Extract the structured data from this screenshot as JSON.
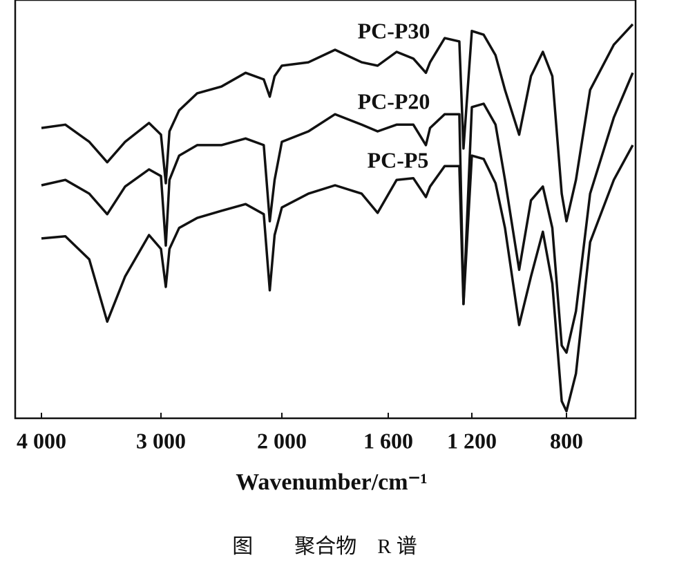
{
  "chart_data": {
    "type": "line",
    "xlabel": "Wavenumber/cm⁻¹",
    "caption": "图　　聚合物　R 谱",
    "x": [
      4000,
      3800,
      3600,
      3450,
      3300,
      3100,
      3000,
      2960,
      2930,
      2850,
      2700,
      2500,
      2300,
      2150,
      2100,
      2060,
      2000,
      1900,
      1800,
      1700,
      1640,
      1560,
      1480,
      1420,
      1400,
      1330,
      1260,
      1240,
      1200,
      1150,
      1100,
      1060,
      1000,
      950,
      900,
      860,
      820,
      800,
      760,
      700,
      600,
      520
    ],
    "series": [
      {
        "name": "PC-P30",
        "color": "#111111",
        "values": [
          69.4,
          70.2,
          66.1,
          61.2,
          66.1,
          70.6,
          67.8,
          56.2,
          68.6,
          73.6,
          77.7,
          79.3,
          82.6,
          81.0,
          76.9,
          81.8,
          84.3,
          85.1,
          88.1,
          85.1,
          84.3,
          87.6,
          86.0,
          82.6,
          85.1,
          90.9,
          90.1,
          64.5,
          92.6,
          91.7,
          86.8,
          78.5,
          67.8,
          81.8,
          87.6,
          81.8,
          53.7,
          47.1,
          57.0,
          78.5,
          89.3,
          94.2
        ]
      },
      {
        "name": "PC-P20",
        "color": "#111111",
        "values": [
          55.7,
          57.0,
          53.7,
          48.8,
          55.4,
          59.5,
          57.9,
          41.3,
          57.0,
          62.8,
          65.3,
          65.3,
          66.9,
          65.3,
          47.1,
          57.0,
          66.1,
          68.6,
          72.7,
          70.2,
          68.6,
          70.2,
          70.2,
          65.3,
          69.4,
          72.7,
          72.7,
          27.3,
          74.4,
          75.2,
          70.2,
          57.0,
          35.5,
          52.1,
          55.4,
          45.5,
          17.4,
          15.7,
          25.6,
          53.7,
          71.9,
          82.6
        ]
      },
      {
        "name": "PC-P5",
        "color": "#111111",
        "values": [
          43.0,
          43.5,
          38.0,
          23.1,
          33.9,
          43.8,
          40.5,
          31.4,
          40.5,
          45.5,
          47.9,
          49.6,
          51.2,
          48.8,
          30.6,
          43.8,
          50.4,
          53.7,
          55.7,
          53.7,
          49.1,
          57.0,
          57.4,
          52.9,
          55.4,
          60.3,
          60.3,
          27.3,
          62.8,
          62.0,
          56.2,
          45.5,
          22.3,
          33.9,
          44.6,
          32.2,
          4.1,
          1.7,
          10.7,
          42.1,
          57.0,
          65.3
        ]
      }
    ],
    "xlim": [
      4220,
      508
    ],
    "xticks": [
      {
        "value": 4000,
        "label": "4 000"
      },
      {
        "value": 3000,
        "label": "3 000"
      },
      {
        "value": 2000,
        "label": "2 000"
      },
      {
        "value": 1600,
        "label": "1 600"
      },
      {
        "value": 1200,
        "label": "1 200"
      },
      800
    ],
    "ylim": [
      0,
      100
    ]
  }
}
